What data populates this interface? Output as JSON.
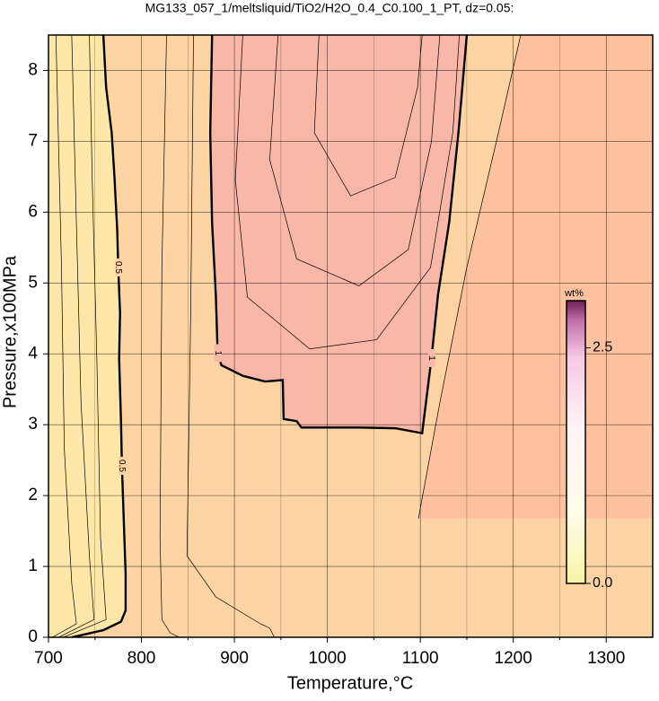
{
  "chart_data": {
    "type": "contour",
    "title": "MG133_057_1/meltsliquid/TiO2/H2O_0.4_C0.100_1_PT, dz=0.05:",
    "x_label": "Temperature,°C",
    "y_label": "Pressure,x100MPa",
    "xlim": [
      700,
      1350
    ],
    "ylim": [
      0,
      8.5
    ],
    "xticks": [
      700,
      800,
      900,
      1000,
      1100,
      1200,
      1300
    ],
    "xminorticks": [
      750,
      850,
      950,
      1050,
      1150,
      1250
    ],
    "yticks": [
      0,
      1,
      2,
      3,
      4,
      5,
      6,
      7,
      8
    ],
    "grid": true,
    "background": "#fde7a8",
    "contours": [
      {
        "level": 0.5,
        "bold": true,
        "fill": "#fcd4a4",
        "T": [
          759,
          762,
          768,
          771,
          774,
          775,
          777,
          776,
          778,
          779,
          781,
          783,
          783,
          778,
          759,
          725
        ],
        "P": [
          8.5,
          7.76,
          7.12,
          6.49,
          5.73,
          5.22,
          4.58,
          3.94,
          3.05,
          2.42,
          1.65,
          0.89,
          0.38,
          0.22,
          0.1,
          0
        ]
      },
      {
        "level": 0.95,
        "bold": false,
        "fill": "#fdc1a0",
        "T": [
          1098,
          1121,
          1150,
          1184,
          1208
        ],
        "P": [
          1.68,
          3.31,
          5.22,
          7.12,
          8.5
        ]
      },
      {
        "level": 1,
        "bold": true,
        "fill": "#f9b7a8",
        "T": [
          876,
          874,
          876,
          880,
          882,
          886,
          909,
          933,
          952,
          953,
          967,
          972,
          1034,
          1073,
          1102,
          1112,
          1119,
          1131,
          1141,
          1150
        ],
        "P": [
          8.5,
          7.12,
          5.85,
          4.83,
          4.01,
          3.84,
          3.69,
          3.61,
          3.63,
          3.08,
          3.05,
          2.96,
          2.96,
          2.95,
          2.88,
          3.94,
          4.83,
          5.85,
          7.12,
          8.5
        ]
      },
      {
        "level": 0.35,
        "bold": false,
        "T": [
          708,
          714,
          717,
          725,
          730,
          704
        ],
        "P": [
          8.5,
          5.22,
          2.67,
          0.76,
          0.19,
          0
        ]
      },
      {
        "level": 0.4,
        "bold": false,
        "T": [
          725,
          730,
          735,
          744,
          749,
          711
        ],
        "P": [
          8.5,
          5.85,
          3.31,
          1.15,
          0.25,
          0
        ]
      },
      {
        "level": 0.45,
        "bold": false,
        "T": [
          744,
          747,
          752,
          756,
          762,
          716
        ],
        "P": [
          8.5,
          6.49,
          3.94,
          1.4,
          0.25,
          0
        ]
      },
      {
        "level": 0.6,
        "bold": false,
        "T": [
          827,
          822,
          820,
          822,
          831,
          841
        ],
        "P": [
          8.5,
          5.22,
          1.4,
          0.25,
          0.06,
          0
        ]
      },
      {
        "level": 0.7,
        "bold": false,
        "T": [
          856,
          853,
          849,
          880,
          928,
          938,
          943
        ],
        "P": [
          8.5,
          4.58,
          1.15,
          0.57,
          0.19,
          0.13,
          0
        ]
      },
      {
        "level": 1.1,
        "bold": false,
        "T": [
          909,
          901,
          914,
          981,
          1053,
          1111,
          1135,
          1142
        ],
        "P": [
          8.5,
          6.45,
          4.8,
          4.07,
          4.2,
          5.22,
          7.13,
          8.5
        ]
      },
      {
        "level": 1.2,
        "bold": false,
        "T": [
          947,
          938,
          967,
          1034,
          1087,
          1112,
          1121
        ],
        "P": [
          8.5,
          6.74,
          5.34,
          4.96,
          5.47,
          7,
          8.5
        ]
      },
      {
        "level": 1.3,
        "bold": false,
        "T": [
          991,
          986,
          1025,
          1073,
          1097,
          1102
        ],
        "P": [
          8.5,
          7.12,
          6.23,
          6.49,
          7.76,
          8.5
        ]
      }
    ],
    "colorbar": {
      "label": "wt%",
      "lim": [
        0,
        3.0
      ],
      "ticks": [
        {
          "value": 0,
          "label": "0.0"
        },
        {
          "value": 2.5,
          "label": "2.5"
        }
      ]
    }
  }
}
